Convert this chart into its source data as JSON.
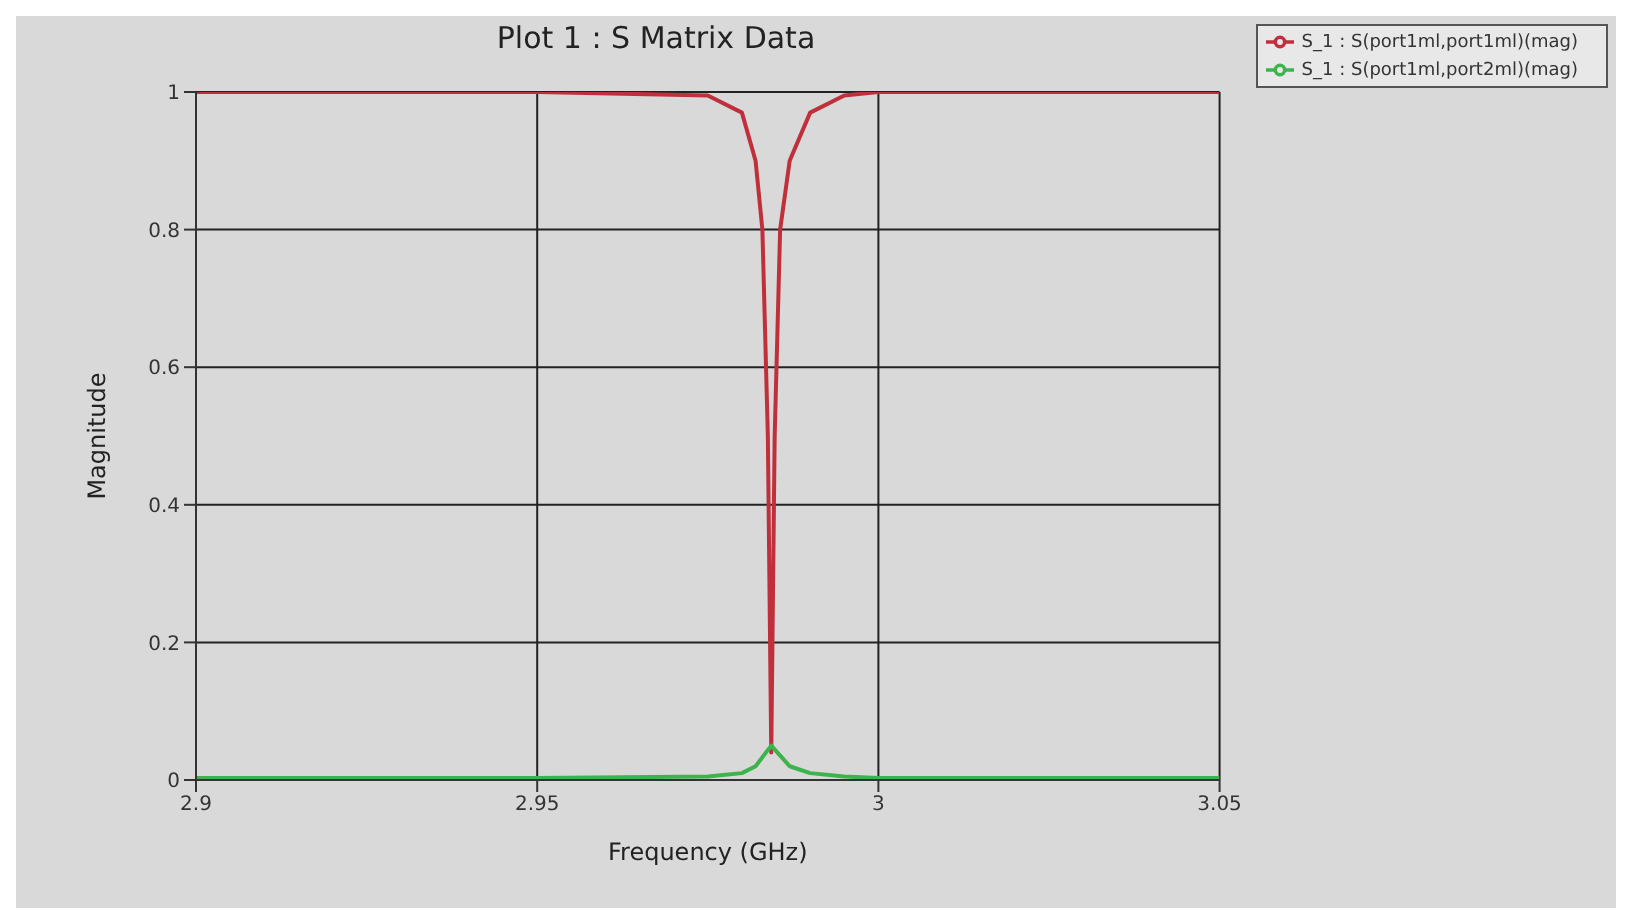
{
  "chart_data": {
    "type": "line",
    "title": "Plot 1 : S Matrix Data",
    "xlabel": "Frequency (GHz)",
    "ylabel": "Magnitude",
    "series": [
      {
        "name": "S_1 : S(port1ml,port1ml)(mag)",
        "color": "#c0303c",
        "x": [
          2.9,
          2.95,
          2.975,
          2.98,
          2.982,
          2.983,
          2.9838,
          2.9843,
          2.9848,
          2.9856,
          2.987,
          2.99,
          2.995,
          3.0,
          3.05
        ],
        "values": [
          1,
          1,
          0.995,
          0.97,
          0.9,
          0.8,
          0.5,
          0.04,
          0.5,
          0.8,
          0.9,
          0.97,
          0.995,
          1,
          1
        ]
      },
      {
        "name": "S_1 : S(port1ml,port2ml)(mag)",
        "color": "#3cb44b",
        "x": [
          2.9,
          2.95,
          2.975,
          2.98,
          2.982,
          2.9843,
          2.987,
          2.99,
          2.995,
          3.0,
          3.05
        ],
        "values": [
          0.003,
          0.003,
          0.005,
          0.01,
          0.02,
          0.05,
          0.02,
          0.01,
          0.005,
          0.003,
          0.003
        ]
      }
    ],
    "xlim": [
      2.9,
      3.05
    ],
    "xticks": [
      2.9,
      2.95,
      3,
      3.05
    ],
    "ylim": [
      0,
      1
    ],
    "yticks": [
      0,
      0.2,
      0.4,
      0.6,
      0.8,
      1
    ],
    "grid": true,
    "legend": "top right",
    "marker": "none",
    "line_style": "solid"
  }
}
